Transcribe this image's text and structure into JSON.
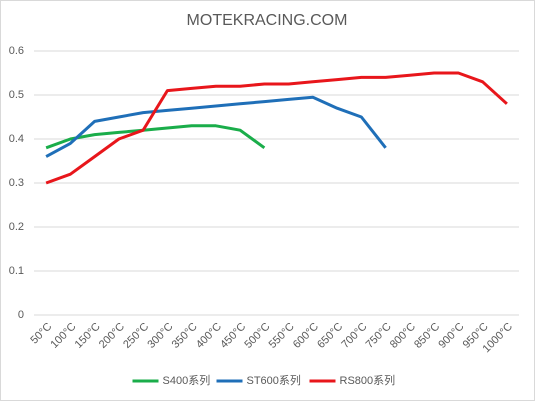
{
  "chart_data": {
    "type": "line",
    "title": "MOTEKRACING.COM",
    "categories": [
      "50°C",
      "100°C",
      "150°C",
      "200°C",
      "250°C",
      "300°C",
      "350°C",
      "400°C",
      "450°C",
      "500°C",
      "550°C",
      "600°C",
      "650°C",
      "700°C",
      "750°C",
      "800°C",
      "850°C",
      "900°C",
      "950°C",
      "1000°C"
    ],
    "series": [
      {
        "name": "S400系列",
        "color": "#1aad4a",
        "values": [
          0.38,
          0.4,
          0.41,
          0.415,
          0.42,
          0.425,
          0.43,
          0.43,
          0.42,
          0.38,
          null,
          null,
          null,
          null,
          null,
          null,
          null,
          null,
          null,
          null
        ]
      },
      {
        "name": "ST600系列",
        "color": "#1f6fb8",
        "values": [
          0.36,
          0.39,
          0.44,
          0.45,
          0.46,
          0.465,
          0.47,
          0.475,
          0.48,
          0.485,
          0.49,
          0.495,
          0.47,
          0.45,
          0.38,
          null,
          null,
          null,
          null,
          null
        ]
      },
      {
        "name": "RS800系列",
        "color": "#e8161b",
        "values": [
          0.3,
          0.32,
          0.36,
          0.4,
          0.42,
          0.51,
          0.515,
          0.52,
          0.52,
          0.525,
          0.525,
          0.53,
          0.535,
          0.54,
          0.54,
          0.545,
          0.55,
          0.55,
          0.53,
          0.48
        ]
      }
    ],
    "ylim": [
      0,
      0.6
    ],
    "yticks": [
      0,
      0.1,
      0.2,
      0.3,
      0.4,
      0.5,
      0.6
    ],
    "grid": true,
    "legend": "bottom"
  }
}
